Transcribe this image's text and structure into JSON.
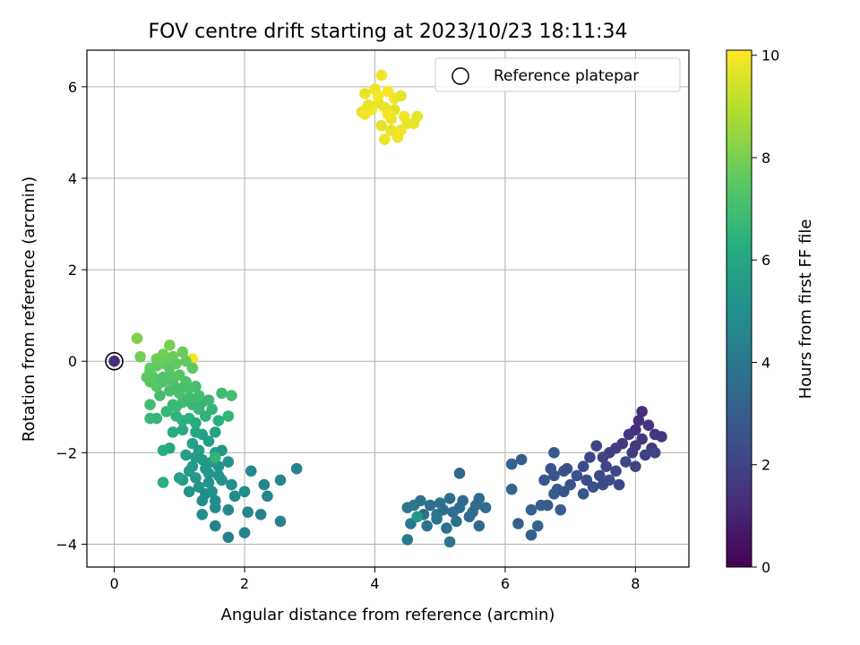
{
  "chart_data": {
    "type": "scatter",
    "title": "FOV centre drift starting at 2023/10/23 18:11:34",
    "xlabel": "Angular distance from reference (arcmin)",
    "ylabel": "Rotation from reference (arcmin)",
    "colorbar_label": "Hours from first FF file",
    "xlim": [
      -0.42,
      8.82
    ],
    "ylim": [
      -4.5,
      6.8
    ],
    "clim": [
      0,
      10.1
    ],
    "x_ticks": [
      0,
      2,
      4,
      6,
      8
    ],
    "y_ticks": [
      -4,
      -2,
      0,
      2,
      4,
      6
    ],
    "colorbar_ticks": [
      0,
      2,
      4,
      6,
      8,
      10
    ],
    "grid": true,
    "colormap": "viridis",
    "legend": {
      "position": "top-right",
      "entries": [
        "Reference platepar"
      ]
    },
    "reference": {
      "x": 0,
      "y": 0
    },
    "points": [
      [
        0.0,
        0.0,
        1.3
      ],
      [
        1.2,
        0.05,
        10.0
      ],
      [
        8.1,
        -1.1,
        1.3
      ],
      [
        8.05,
        -1.3,
        1.4
      ],
      [
        8.2,
        -1.4,
        1.5
      ],
      [
        8.0,
        -1.5,
        1.4
      ],
      [
        8.3,
        -1.6,
        1.5
      ],
      [
        8.4,
        -1.65,
        1.6
      ],
      [
        7.9,
        -1.6,
        1.5
      ],
      [
        8.1,
        -1.7,
        1.6
      ],
      [
        7.8,
        -1.8,
        1.7
      ],
      [
        8.0,
        -1.85,
        1.6
      ],
      [
        8.25,
        -1.9,
        1.7
      ],
      [
        7.7,
        -1.9,
        1.8
      ],
      [
        7.95,
        -2.0,
        1.8
      ],
      [
        8.15,
        -2.05,
        1.9
      ],
      [
        7.6,
        -2.0,
        1.9
      ],
      [
        7.4,
        -1.85,
        2.0
      ],
      [
        7.5,
        -2.1,
        2.0
      ],
      [
        8.3,
        -2.0,
        2.0
      ],
      [
        7.85,
        -2.2,
        2.1
      ],
      [
        8.0,
        -2.3,
        2.1
      ],
      [
        7.7,
        -2.4,
        2.2
      ],
      [
        7.55,
        -2.3,
        2.2
      ],
      [
        7.3,
        -2.1,
        2.1
      ],
      [
        7.2,
        -2.3,
        2.3
      ],
      [
        7.45,
        -2.5,
        2.3
      ],
      [
        7.25,
        -2.6,
        2.4
      ],
      [
        7.6,
        -2.6,
        2.4
      ],
      [
        7.75,
        -2.7,
        2.2
      ],
      [
        7.1,
        -2.5,
        2.5
      ],
      [
        7.35,
        -2.75,
        2.5
      ],
      [
        7.0,
        -2.7,
        2.5
      ],
      [
        7.2,
        -2.9,
        2.6
      ],
      [
        7.5,
        -2.7,
        2.3
      ],
      [
        6.9,
        -2.4,
        2.6
      ],
      [
        6.75,
        -2.5,
        2.7
      ],
      [
        6.8,
        -2.8,
        2.8
      ],
      [
        6.95,
        -2.35,
        2.4
      ],
      [
        6.7,
        -2.35,
        2.6
      ],
      [
        6.6,
        -2.6,
        2.8
      ],
      [
        6.75,
        -2.9,
        2.9
      ],
      [
        6.9,
        -2.85,
        2.7
      ],
      [
        6.55,
        -3.15,
        3.0
      ],
      [
        6.65,
        -3.15,
        2.9
      ],
      [
        6.85,
        -3.25,
        3.0
      ],
      [
        6.4,
        -3.25,
        3.1
      ],
      [
        6.2,
        -3.55,
        3.1
      ],
      [
        6.5,
        -3.6,
        3.2
      ],
      [
        6.4,
        -3.8,
        3.1
      ],
      [
        6.1,
        -2.25,
        3.2
      ],
      [
        6.1,
        -2.8,
        3.3
      ],
      [
        6.25,
        -2.15,
        3.0
      ],
      [
        6.75,
        -2.0,
        2.8
      ],
      [
        5.3,
        -2.45,
        3.4
      ],
      [
        5.6,
        -3.0,
        3.5
      ],
      [
        5.7,
        -3.2,
        3.6
      ],
      [
        5.5,
        -3.3,
        3.6
      ],
      [
        5.35,
        -3.05,
        3.5
      ],
      [
        5.15,
        -3.0,
        3.6
      ],
      [
        5.0,
        -3.1,
        3.8
      ],
      [
        4.85,
        -3.15,
        3.7
      ],
      [
        4.7,
        -3.05,
        3.8
      ],
      [
        4.6,
        -3.15,
        3.9
      ],
      [
        4.5,
        -3.2,
        4.0
      ],
      [
        4.75,
        -3.35,
        3.7
      ],
      [
        4.95,
        -3.45,
        3.8
      ],
      [
        5.2,
        -3.3,
        3.6
      ],
      [
        5.25,
        -3.5,
        3.7
      ],
      [
        5.45,
        -3.4,
        3.5
      ],
      [
        5.6,
        -3.6,
        3.5
      ],
      [
        5.1,
        -3.65,
        3.8
      ],
      [
        4.8,
        -3.6,
        3.9
      ],
      [
        4.55,
        -3.55,
        4.0
      ],
      [
        4.5,
        -3.9,
        4.1
      ],
      [
        5.15,
        -3.95,
        3.9
      ],
      [
        4.95,
        -3.35,
        3.9
      ],
      [
        4.65,
        -3.4,
        5.5
      ],
      [
        5.05,
        -3.25,
        3.7
      ],
      [
        5.3,
        -3.2,
        3.6
      ],
      [
        5.55,
        -3.15,
        3.5
      ],
      [
        2.8,
        -2.35,
        4.5
      ],
      [
        2.55,
        -2.6,
        4.6
      ],
      [
        2.3,
        -2.7,
        4.6
      ],
      [
        2.1,
        -2.4,
        4.7
      ],
      [
        2.35,
        -2.95,
        4.6
      ],
      [
        2.0,
        -2.85,
        4.8
      ],
      [
        1.85,
        -2.95,
        4.8
      ],
      [
        2.05,
        -3.3,
        4.6
      ],
      [
        2.25,
        -3.35,
        4.5
      ],
      [
        2.55,
        -3.5,
        4.4
      ],
      [
        1.75,
        -3.25,
        4.7
      ],
      [
        1.55,
        -3.2,
        4.8
      ],
      [
        1.75,
        -3.85,
        4.3
      ],
      [
        1.55,
        -3.6,
        4.5
      ],
      [
        2.0,
        -3.75,
        4.4
      ],
      [
        1.35,
        -3.35,
        4.9
      ],
      [
        1.35,
        -3.05,
        5.0
      ],
      [
        1.5,
        -2.85,
        5.0
      ],
      [
        1.65,
        -2.6,
        5.1
      ],
      [
        1.8,
        -2.7,
        4.9
      ],
      [
        1.75,
        -2.2,
        5.1
      ],
      [
        1.6,
        -2.3,
        5.2
      ],
      [
        1.45,
        -2.45,
        5.3
      ],
      [
        1.25,
        -2.55,
        5.3
      ],
      [
        1.15,
        -2.85,
        5.2
      ],
      [
        1.05,
        -2.6,
        5.4
      ],
      [
        1.2,
        -2.3,
        5.4
      ],
      [
        1.35,
        -2.15,
        5.5
      ],
      [
        1.55,
        -2.0,
        5.5
      ],
      [
        1.3,
        -1.95,
        5.6
      ],
      [
        1.1,
        -2.05,
        5.6
      ],
      [
        1.2,
        -1.8,
        5.7
      ],
      [
        1.45,
        -1.75,
        5.6
      ],
      [
        1.65,
        -1.95,
        5.4
      ],
      [
        1.45,
        -2.65,
        5.1
      ],
      [
        1.3,
        -2.75,
        5.2
      ],
      [
        1.55,
        -3.05,
        4.9
      ],
      [
        1.4,
        -2.9,
        5.0
      ],
      [
        1.6,
        -2.5,
        5.2
      ],
      [
        1.5,
        -2.2,
        5.3
      ],
      [
        1.4,
        -2.35,
        5.4
      ],
      [
        1.25,
        -2.1,
        5.5
      ],
      [
        1.15,
        -2.4,
        5.5
      ],
      [
        1.35,
        -1.6,
        5.7
      ],
      [
        1.55,
        -1.55,
        5.8
      ],
      [
        1.25,
        -1.55,
        6.0
      ],
      [
        1.05,
        -1.5,
        6.1
      ],
      [
        0.9,
        -1.55,
        6.2
      ],
      [
        0.85,
        -1.9,
        6.0
      ],
      [
        0.75,
        -1.95,
        6.2
      ],
      [
        0.75,
        -2.65,
        6.3
      ],
      [
        1.0,
        -2.55,
        5.8
      ],
      [
        1.55,
        -2.1,
        6.6
      ],
      [
        1.05,
        -1.3,
        6.4
      ],
      [
        0.95,
        -1.2,
        6.5
      ],
      [
        1.15,
        -1.25,
        6.4
      ],
      [
        1.25,
        -1.35,
        6.2
      ],
      [
        1.4,
        -1.2,
        6.5
      ],
      [
        1.6,
        -1.3,
        6.3
      ],
      [
        1.75,
        -1.2,
        6.6
      ],
      [
        1.5,
        -1.05,
        6.6
      ],
      [
        1.35,
        -0.9,
        6.7
      ],
      [
        1.45,
        -0.85,
        6.8
      ],
      [
        1.65,
        -0.7,
        6.9
      ],
      [
        1.8,
        -0.75,
        7.0
      ],
      [
        1.2,
        -0.95,
        6.8
      ],
      [
        1.05,
        -0.9,
        6.9
      ],
      [
        0.9,
        -0.95,
        6.8
      ],
      [
        0.8,
        -1.1,
        6.7
      ],
      [
        0.65,
        -1.25,
        6.6
      ],
      [
        0.55,
        -1.25,
        6.7
      ],
      [
        0.55,
        -0.95,
        6.9
      ],
      [
        0.7,
        -0.75,
        7.0
      ],
      [
        0.85,
        -0.65,
        7.1
      ],
      [
        1.0,
        -0.7,
        7.2
      ],
      [
        1.15,
        -0.6,
        7.2
      ],
      [
        1.25,
        -0.55,
        7.1
      ],
      [
        1.3,
        -0.75,
        7.0
      ],
      [
        0.9,
        -0.45,
        7.3
      ],
      [
        0.75,
        -0.45,
        7.3
      ],
      [
        0.65,
        -0.55,
        7.4
      ],
      [
        0.55,
        -0.45,
        7.4
      ],
      [
        0.5,
        -0.35,
        7.5
      ],
      [
        0.55,
        -0.2,
        7.6
      ],
      [
        0.65,
        -0.1,
        7.6
      ],
      [
        0.75,
        -0.05,
        7.7
      ],
      [
        0.85,
        -0.15,
        7.5
      ],
      [
        1.0,
        -0.3,
        7.4
      ],
      [
        1.1,
        -0.45,
        7.2
      ],
      [
        0.8,
        0.05,
        7.7
      ],
      [
        0.9,
        0.1,
        7.8
      ],
      [
        0.75,
        0.15,
        7.9
      ],
      [
        0.65,
        0.05,
        7.8
      ],
      [
        0.85,
        0.35,
        8.0
      ],
      [
        0.4,
        0.1,
        7.9
      ],
      [
        0.35,
        0.5,
        8.1
      ],
      [
        1.05,
        0.2,
        7.8
      ],
      [
        0.95,
        -0.05,
        7.6
      ],
      [
        1.1,
        0.0,
        7.6
      ],
      [
        1.2,
        -0.15,
        7.5
      ],
      [
        0.85,
        -0.3,
        7.4
      ],
      [
        1.0,
        -0.6,
        7.1
      ],
      [
        1.15,
        -0.8,
        6.9
      ],
      [
        1.3,
        -1.05,
        6.7
      ],
      [
        0.75,
        -0.35,
        7.3
      ],
      [
        0.55,
        -0.15,
        7.6
      ],
      [
        0.6,
        -0.35,
        7.5
      ],
      [
        0.95,
        -1.0,
        6.8
      ],
      [
        4.1,
        6.25,
        9.9
      ],
      [
        3.85,
        5.85,
        9.8
      ],
      [
        4.0,
        5.95,
        9.9
      ],
      [
        4.2,
        5.9,
        10.0
      ],
      [
        4.3,
        5.75,
        9.9
      ],
      [
        4.4,
        5.8,
        9.8
      ],
      [
        4.05,
        5.65,
        9.7
      ],
      [
        4.15,
        5.55,
        9.8
      ],
      [
        3.95,
        5.5,
        9.9
      ],
      [
        3.8,
        5.45,
        9.8
      ],
      [
        3.85,
        5.4,
        9.9
      ],
      [
        4.3,
        5.5,
        9.7
      ],
      [
        4.25,
        5.3,
        9.8
      ],
      [
        4.45,
        5.35,
        9.9
      ],
      [
        4.5,
        5.2,
        9.8
      ],
      [
        4.1,
        5.15,
        9.7
      ],
      [
        4.25,
        5.05,
        9.8
      ],
      [
        4.4,
        5.05,
        9.9
      ],
      [
        4.6,
        5.2,
        9.8
      ],
      [
        4.65,
        5.35,
        9.7
      ],
      [
        4.15,
        4.85,
        9.8
      ],
      [
        4.35,
        4.9,
        9.9
      ],
      [
        4.2,
        5.4,
        10.0
      ],
      [
        4.05,
        5.8,
        10.0
      ],
      [
        3.9,
        5.6,
        9.8
      ]
    ]
  }
}
